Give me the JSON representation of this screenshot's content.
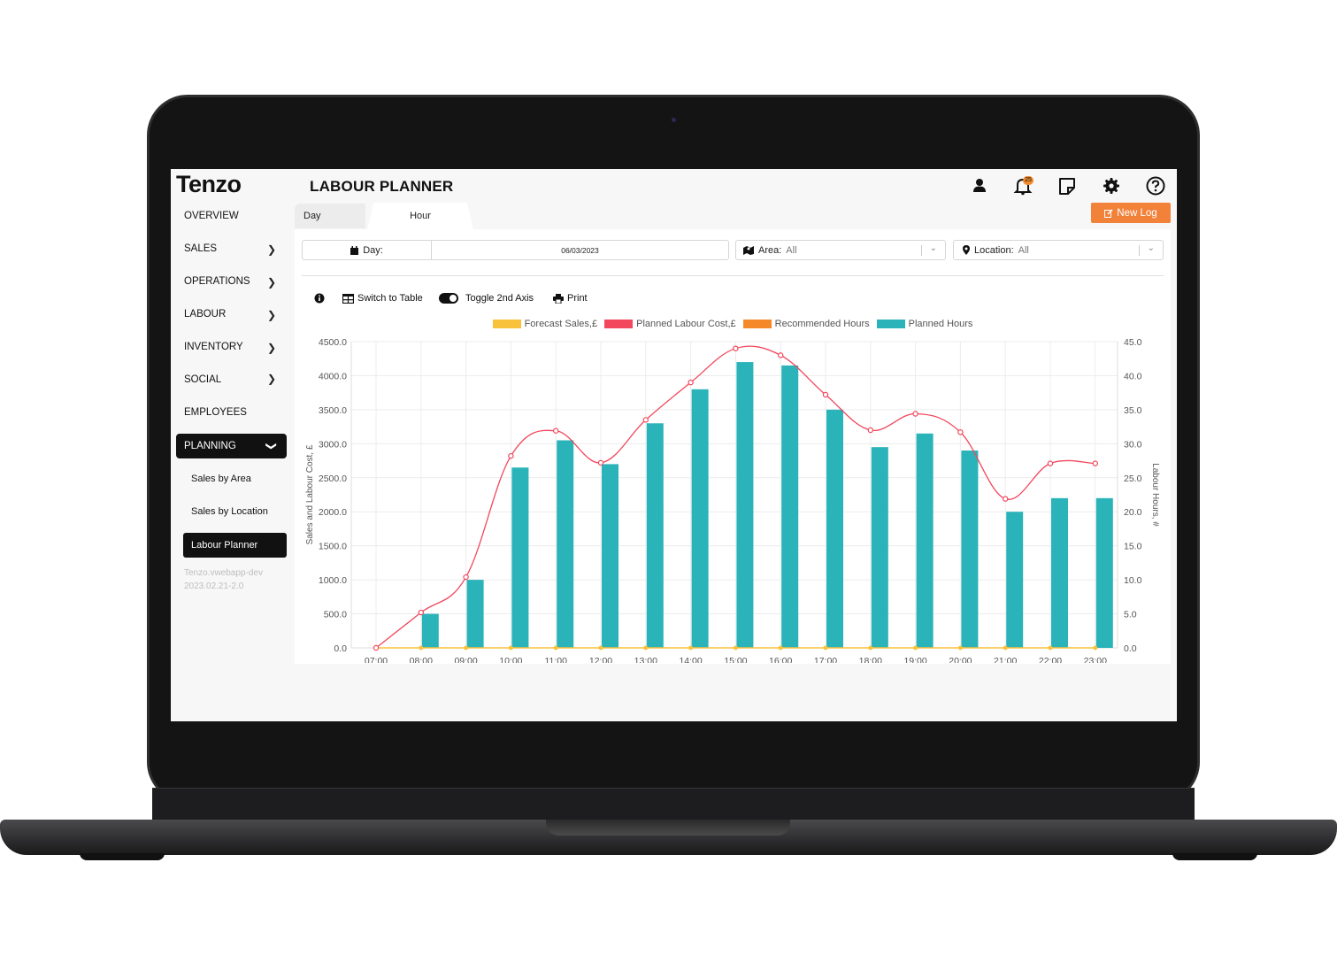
{
  "sidebar": {
    "logo": "Tenzo",
    "nav": [
      {
        "label": "OVERVIEW",
        "chevron": false
      },
      {
        "label": "SALES",
        "chevron": true
      },
      {
        "label": "OPERATIONS",
        "chevron": true
      },
      {
        "label": "LABOUR",
        "chevron": true
      },
      {
        "label": "INVENTORY",
        "chevron": true
      },
      {
        "label": "SOCIAL",
        "chevron": true
      },
      {
        "label": "EMPLOYEES",
        "chevron": false
      },
      {
        "label": "PLANNING",
        "chevron": true,
        "active": true
      }
    ],
    "sub": [
      {
        "label": "Sales by Area"
      },
      {
        "label": "Sales by Location"
      },
      {
        "label": "Labour Planner",
        "active": true
      }
    ],
    "version_line1": "Tenzo.vwebapp-dev",
    "version_line2": "2023.02.21-2.0"
  },
  "header": {
    "title": "LABOUR PLANNER",
    "notification_count": "25",
    "icons": [
      "user-icon",
      "bell-icon",
      "note-icon",
      "gear-icon",
      "help-icon"
    ]
  },
  "tabs": {
    "day": "Day",
    "hour": "Hour"
  },
  "new_log_label": "New Log",
  "filters": {
    "day_label": "Day:",
    "day_value": "06/03/2023",
    "area_label": "Area:",
    "area_value": "All",
    "location_label": "Location:",
    "location_value": "All"
  },
  "toolbar": {
    "switch_table": "Switch to Table",
    "toggle_axis": "Toggle 2nd Axis",
    "print": "Print"
  },
  "colors": {
    "forecast_sales": "#f9c23c",
    "planned_labour_cost": "#f2475c",
    "recommended_hours": "#f5892a",
    "planned_hours": "#2ab3b9",
    "accent": "#f2823a"
  },
  "chart_data": {
    "type": "bar",
    "categories": [
      "07:00",
      "08:00",
      "09:00",
      "10:00",
      "11:00",
      "12:00",
      "13:00",
      "14:00",
      "15:00",
      "16:00",
      "17:00",
      "18:00",
      "19:00",
      "20:00",
      "21:00",
      "22:00",
      "23:00"
    ],
    "ylabel": "Sales and Labour Cost, £",
    "y2label": "Labour Hours, #",
    "ylim": [
      0,
      4500
    ],
    "y2lim": [
      0,
      45
    ],
    "y_ticks": [
      "0.0",
      "500.0",
      "1000.0",
      "1500.0",
      "2000.0",
      "2500.0",
      "3000.0",
      "3500.0",
      "4000.0",
      "4500.0"
    ],
    "y2_ticks": [
      "0.0",
      "5.0",
      "10.0",
      "15.0",
      "20.0",
      "25.0",
      "30.0",
      "35.0",
      "40.0",
      "45.0"
    ],
    "grid": true,
    "legend_position": "top",
    "series": [
      {
        "name": "Forecast Sales,£",
        "type": "line",
        "axis": "left",
        "values": [
          0,
          0,
          0,
          0,
          0,
          0,
          0,
          0,
          0,
          0,
          0,
          0,
          0,
          0,
          0,
          0,
          0
        ]
      },
      {
        "name": "Planned Labour Cost,£",
        "type": "line",
        "axis": "left",
        "values": [
          0,
          520,
          1040,
          2820,
          3190,
          2720,
          3350,
          3900,
          4400,
          4300,
          3720,
          3200,
          3440,
          3170,
          2190,
          2710,
          2710
        ]
      },
      {
        "name": "Recommended Hours",
        "type": "line",
        "axis": "right",
        "values": [
          0,
          0,
          0,
          0,
          0,
          0,
          0,
          0,
          0,
          0,
          0,
          0,
          0,
          0,
          0,
          0,
          0
        ]
      },
      {
        "name": "Planned Hours",
        "type": "bar",
        "axis": "right",
        "values": [
          0,
          5,
          10,
          26.5,
          30.5,
          27,
          33,
          38,
          42,
          41.5,
          35,
          29.5,
          31.5,
          29,
          20,
          22,
          22
        ]
      }
    ]
  }
}
